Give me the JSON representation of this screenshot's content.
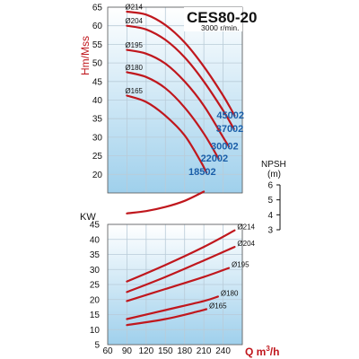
{
  "colors": {
    "curve": "#c0171d",
    "label_blue": "#1a5ea8",
    "axis_red": "#c0171d",
    "grid": "#b9cbd8",
    "bg_light": "#ffffff",
    "bg_blue": "#9fd0ec"
  },
  "chart_data": {
    "type": "line",
    "title": "CES80-20",
    "subtitle": "3000 r/min.",
    "x": {
      "label_main": "Q m",
      "label_sup": "3",
      "label_tail": "/h",
      "range": [
        60,
        270
      ],
      "ticks": [
        60,
        90,
        120,
        150,
        180,
        210,
        240,
        270
      ],
      "tick_labels": [
        "60",
        "90",
        "120",
        "150",
        "180",
        "210",
        "240",
        ""
      ]
    },
    "head": {
      "ylabel": "Hm/Mss",
      "ylim": [
        15,
        65
      ],
      "ticks": [
        20,
        25,
        30,
        35,
        40,
        45,
        50,
        55,
        60,
        65
      ],
      "tick_labels": [
        "20",
        "25",
        "30",
        "35",
        "40",
        "45",
        "50",
        "55",
        "60",
        "65"
      ],
      "series": [
        {
          "diameter": "Ø214",
          "code": "45002",
          "points": [
            [
              90,
              63.8
            ],
            [
              120,
              63.0
            ],
            [
              150,
              60.2
            ],
            [
              180,
              55.5
            ],
            [
              210,
              49.0
            ],
            [
              240,
              41.2
            ],
            [
              258,
              35.8
            ]
          ]
        },
        {
          "diameter": "Ø204",
          "code": "37002",
          "points": [
            [
              90,
              60.0
            ],
            [
              120,
              59.0
            ],
            [
              150,
              56.2
            ],
            [
              180,
              51.5
            ],
            [
              210,
              45.0
            ],
            [
              240,
              37.2
            ],
            [
              257,
              32.2
            ]
          ]
        },
        {
          "diameter": "Ø195",
          "code": "30002",
          "points": [
            [
              90,
              53.5
            ],
            [
              120,
              52.5
            ],
            [
              150,
              49.8
            ],
            [
              180,
              45.0
            ],
            [
              210,
              38.5
            ],
            [
              240,
              30.0
            ],
            [
              249,
              27.5
            ]
          ]
        },
        {
          "diameter": "Ø180",
          "code": "22002",
          "points": [
            [
              90,
              47.5
            ],
            [
              120,
              46.2
            ],
            [
              150,
              43.2
            ],
            [
              180,
              38.0
            ],
            [
              210,
              31.0
            ],
            [
              233,
              24.2
            ]
          ]
        },
        {
          "diameter": "Ø165",
          "code": "18502",
          "points": [
            [
              90,
              41.2
            ],
            [
              120,
              39.5
            ],
            [
              150,
              35.8
            ],
            [
              180,
              30.5
            ],
            [
              205,
              23.5
            ],
            [
              214,
              20.5
            ]
          ]
        }
      ]
    },
    "npsh": {
      "ylabel": "NPSH",
      "unit": "(m)",
      "ylim": [
        3,
        6
      ],
      "ticks": [
        3,
        4,
        5,
        6
      ],
      "tick_labels": [
        "3",
        "4",
        "5",
        "6"
      ],
      "points": [
        [
          90,
          3.6
        ],
        [
          120,
          3.75
        ],
        [
          150,
          4.02
        ],
        [
          180,
          4.42
        ],
        [
          210,
          5.02
        ]
      ]
    },
    "power": {
      "ylabel": "KW",
      "ylim": [
        5,
        45
      ],
      "ticks": [
        5,
        10,
        15,
        20,
        25,
        30,
        35,
        40,
        45
      ],
      "tick_labels": [
        "5",
        "10",
        "15",
        "20",
        "25",
        "30",
        "35",
        "40",
        "45"
      ],
      "series": [
        {
          "diameter": "Ø214",
          "points": [
            [
              90,
              26.0
            ],
            [
              150,
              31.5
            ],
            [
              210,
              37.5
            ],
            [
              258,
              43.0
            ]
          ]
        },
        {
          "diameter": "Ø204",
          "points": [
            [
              90,
              22.5
            ],
            [
              150,
              27.5
            ],
            [
              210,
              33.0
            ],
            [
              258,
              37.5
            ]
          ]
        },
        {
          "diameter": "Ø195",
          "points": [
            [
              90,
              19.5
            ],
            [
              150,
              23.5
            ],
            [
              210,
              27.5
            ],
            [
              249,
              30.5
            ]
          ]
        },
        {
          "diameter": "Ø180",
          "points": [
            [
              90,
              13.5
            ],
            [
              150,
              16.5
            ],
            [
              210,
              19.5
            ],
            [
              232,
              21.0
            ]
          ]
        },
        {
          "diameter": "Ø165",
          "points": [
            [
              90,
              11.5
            ],
            [
              150,
              13.5
            ],
            [
              200,
              16.0
            ],
            [
              214,
              16.8
            ]
          ]
        }
      ]
    }
  }
}
